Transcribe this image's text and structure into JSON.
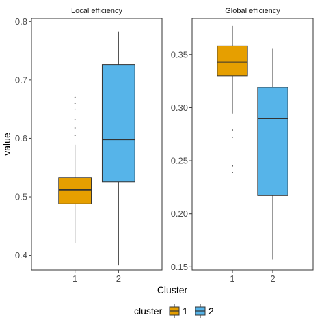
{
  "chart_data": {
    "type": "box",
    "xlabel": "Cluster",
    "ylabel": "value",
    "categories": [
      "1",
      "2"
    ],
    "legend": {
      "title": "cluster",
      "position": "bottom",
      "entries": [
        {
          "label": "1",
          "color": "#E69F00"
        },
        {
          "label": "2",
          "color": "#56B4E9"
        }
      ]
    },
    "grid": false,
    "panels": [
      {
        "title": "Local efficiency",
        "ylim": [
          0.375,
          0.805
        ],
        "yticks": [
          0.4,
          0.5,
          0.6,
          0.7,
          0.8
        ],
        "ytick_labels": [
          "0.4",
          "0.5",
          "0.6",
          "0.7",
          "0.8"
        ],
        "boxes": [
          {
            "category": "1",
            "min": 0.421,
            "q1": 0.488,
            "median": 0.512,
            "q3": 0.533,
            "max": 0.589,
            "outliers": [
              0.605,
              0.618,
              0.632,
              0.65,
              0.66,
              0.67
            ]
          },
          {
            "category": "2",
            "min": 0.383,
            "q1": 0.526,
            "median": 0.598,
            "q3": 0.726,
            "max": 0.782,
            "outliers": []
          }
        ]
      },
      {
        "title": "Global efficiency",
        "ylim": [
          0.147,
          0.384
        ],
        "yticks": [
          0.15,
          0.2,
          0.25,
          0.3,
          0.35
        ],
        "ytick_labels": [
          "0.15",
          "0.20",
          "0.25",
          "0.30",
          "0.35"
        ],
        "boxes": [
          {
            "category": "1",
            "min": 0.294,
            "q1": 0.33,
            "median": 0.343,
            "q3": 0.358,
            "max": 0.377,
            "outliers": [
              0.239,
              0.245,
              0.272,
              0.279
            ]
          },
          {
            "category": "2",
            "min": 0.157,
            "q1": 0.217,
            "median": 0.29,
            "q3": 0.319,
            "max": 0.356,
            "outliers": []
          }
        ]
      }
    ]
  }
}
